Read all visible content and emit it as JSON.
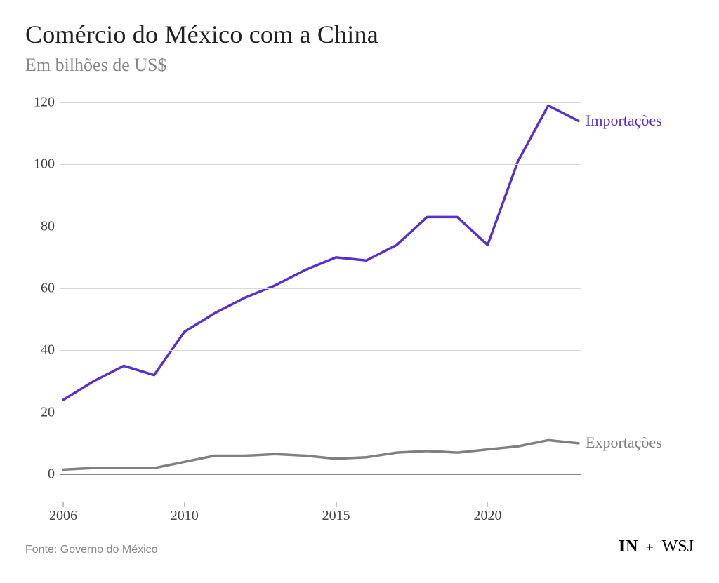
{
  "title": "Comércio do México com a China",
  "subtitle": "Em bilhões de US$",
  "source": "Fonte: Governo do México",
  "logo": {
    "left": "IN",
    "sep": "+",
    "right": "WSJ"
  },
  "chart": {
    "type": "line",
    "background_color": "#ffffff",
    "grid_color": "#d8d8d8",
    "baseline_color": "#888888",
    "title_fontsize": 36,
    "subtitle_fontsize": 26,
    "subtitle_color": "#888888",
    "axis_label_fontsize": 20,
    "axis_label_color": "#444444",
    "series_label_fontsize": 22,
    "line_width": 3.5,
    "x": {
      "min": 2006,
      "max": 2023,
      "ticks": [
        2006,
        2010,
        2015,
        2020
      ],
      "tick_labels": [
        "2006",
        "2010",
        "2015",
        "2020"
      ]
    },
    "y": {
      "min": 0,
      "max": 120,
      "ticks": [
        0,
        20,
        40,
        60,
        80,
        100,
        120
      ],
      "tick_labels": [
        "0",
        "20",
        "40",
        "60",
        "80",
        "100",
        "120"
      ]
    },
    "series": [
      {
        "name": "Importações",
        "color": "#5b2fc9",
        "label_color": "#5b2fc9",
        "data": [
          {
            "x": 2006,
            "y": 24
          },
          {
            "x": 2007,
            "y": 30
          },
          {
            "x": 2008,
            "y": 35
          },
          {
            "x": 2009,
            "y": 32
          },
          {
            "x": 2010,
            "y": 46
          },
          {
            "x": 2011,
            "y": 52
          },
          {
            "x": 2012,
            "y": 57
          },
          {
            "x": 2013,
            "y": 61
          },
          {
            "x": 2014,
            "y": 66
          },
          {
            "x": 2015,
            "y": 70
          },
          {
            "x": 2016,
            "y": 69
          },
          {
            "x": 2017,
            "y": 74
          },
          {
            "x": 2018,
            "y": 83
          },
          {
            "x": 2019,
            "y": 83
          },
          {
            "x": 2020,
            "y": 74
          },
          {
            "x": 2021,
            "y": 101
          },
          {
            "x": 2022,
            "y": 119
          },
          {
            "x": 2023,
            "y": 114
          }
        ]
      },
      {
        "name": "Exportações",
        "color": "#808080",
        "label_color": "#808080",
        "data": [
          {
            "x": 2006,
            "y": 1.5
          },
          {
            "x": 2007,
            "y": 2
          },
          {
            "x": 2008,
            "y": 2
          },
          {
            "x": 2009,
            "y": 2
          },
          {
            "x": 2010,
            "y": 4
          },
          {
            "x": 2011,
            "y": 6
          },
          {
            "x": 2012,
            "y": 6
          },
          {
            "x": 2013,
            "y": 6.5
          },
          {
            "x": 2014,
            "y": 6
          },
          {
            "x": 2015,
            "y": 5
          },
          {
            "x": 2016,
            "y": 5.5
          },
          {
            "x": 2017,
            "y": 7
          },
          {
            "x": 2018,
            "y": 7.5
          },
          {
            "x": 2019,
            "y": 7
          },
          {
            "x": 2020,
            "y": 8
          },
          {
            "x": 2021,
            "y": 9
          },
          {
            "x": 2022,
            "y": 11
          },
          {
            "x": 2023,
            "y": 10
          }
        ]
      }
    ]
  }
}
